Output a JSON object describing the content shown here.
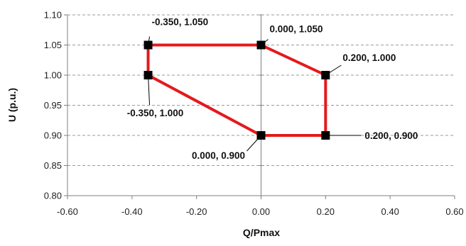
{
  "chart_data": {
    "type": "scatter",
    "xlabel": "Q/Pmax",
    "ylabel": "U (p.u.)",
    "xlim": [
      -0.6,
      0.6
    ],
    "ylim": [
      0.8,
      1.1
    ],
    "x_ticks": [
      "-0.60",
      "-0.40",
      "-0.20",
      "0.00",
      "0.20",
      "0.40",
      "0.60"
    ],
    "y_ticks": [
      "0.80",
      "0.85",
      "0.90",
      "0.95",
      "1.00",
      "1.05",
      "1.10"
    ],
    "grid": "horizontal dashed",
    "line_color": "#e31a1c",
    "marker_color": "#000000",
    "series": [
      {
        "closed": true,
        "points": [
          {
            "x": -0.35,
            "y": 1.05,
            "label": "-0.350, 1.050"
          },
          {
            "x": 0.0,
            "y": 1.05,
            "label": "0.000, 1.050"
          },
          {
            "x": 0.2,
            "y": 1.0,
            "label": "0.200, 1.000"
          },
          {
            "x": 0.2,
            "y": 0.9,
            "label": "0.200, 0.900"
          },
          {
            "x": 0.0,
            "y": 0.9,
            "label": "0.000, 0.900"
          },
          {
            "x": -0.35,
            "y": 1.0,
            "label": "-0.350, 1.000"
          }
        ]
      }
    ]
  }
}
